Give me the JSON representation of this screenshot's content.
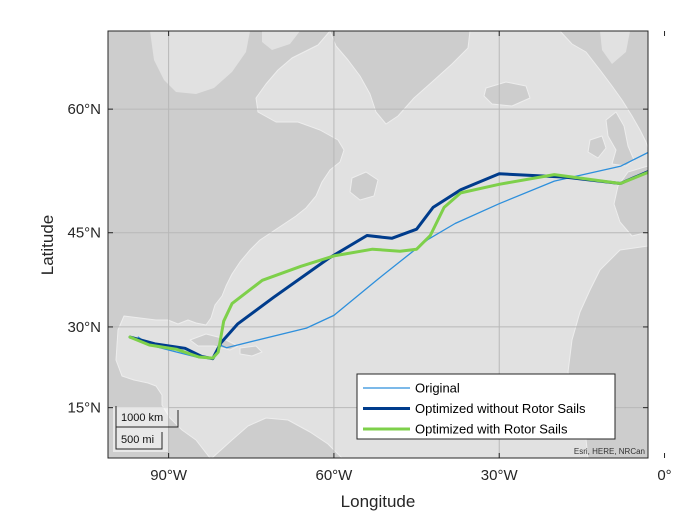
{
  "colors": {
    "ocean": "#e1e1e1",
    "land": "#cdcdcd",
    "land_edge": "#ededed",
    "grid": "#b8b8b8",
    "axis": "#262626"
  },
  "axes": {
    "xlabel": "Longitude",
    "ylabel": "Latitude",
    "xlim": [
      -101,
      -3
    ],
    "ylim": [
      5,
      67
    ],
    "xticks": [
      {
        "value": -90,
        "label": "90°W"
      },
      {
        "value": -60,
        "label": "60°W"
      },
      {
        "value": -30,
        "label": "30°W"
      },
      {
        "value": 0,
        "label": "0°"
      }
    ],
    "yticks": [
      {
        "value": 15,
        "label": "15°N"
      },
      {
        "value": 30,
        "label": "30°N"
      },
      {
        "value": 45,
        "label": "45°N"
      },
      {
        "value": 60,
        "label": "60°N"
      }
    ]
  },
  "chart_data": {
    "type": "line",
    "xlabel": "Longitude",
    "ylabel": "Latitude",
    "xlim": [
      -101,
      -3
    ],
    "ylim": [
      5,
      67
    ],
    "projection": "web-mercator",
    "basemap": "grayland",
    "grid": true,
    "legend_position": "bottom-right",
    "series": [
      {
        "name": "Original",
        "color": "#2d8fdc",
        "width": 1.3,
        "lon": [
          -95.5,
          -93.5,
          -88.5,
          -84.5,
          -81.8,
          -80.5,
          -79.5,
          -65,
          -60,
          -52,
          -43,
          -38,
          -30,
          -20,
          -8,
          -1.5
        ],
        "lat": [
          28.2,
          26.8,
          25.5,
          24.5,
          24.3,
          26.7,
          26.3,
          29.8,
          32,
          38,
          44,
          46.3,
          49,
          51.9,
          53.7,
          55.8
        ]
      },
      {
        "name": "Optimized without Rotor Sails",
        "color": "#003c8c",
        "width": 3,
        "lon": [
          -97,
          -92.5,
          -87,
          -84,
          -82,
          -80.5,
          -77.5,
          -71,
          -61,
          -54,
          -49.5,
          -45,
          -42,
          -37,
          -30,
          -18,
          -8,
          -1.5
        ],
        "lat": [
          28.2,
          27,
          26.2,
          24.7,
          24.3,
          27.2,
          30.5,
          35,
          41.2,
          44.6,
          44.2,
          45.5,
          48.5,
          50.8,
          52.8,
          52.4,
          51.6,
          53.5
        ]
      },
      {
        "name": "Optimized with Rotor Sails",
        "color": "#7ed04a",
        "width": 3,
        "lon": [
          -97,
          -93.5,
          -88.5,
          -84.5,
          -82,
          -81,
          -80,
          -78.5,
          -73,
          -66,
          -60,
          -53,
          -48,
          -45,
          -42.5,
          -40,
          -37,
          -30,
          -20,
          -8,
          -1,
          1
        ],
        "lat": [
          28.2,
          26.8,
          26,
          24.6,
          24.4,
          25.5,
          31,
          34,
          37.8,
          40,
          41.6,
          42.6,
          42.3,
          42.6,
          44.6,
          48.5,
          50.4,
          51.5,
          52.7,
          51.6,
          53.5,
          55.5
        ]
      }
    ]
  },
  "legend": {
    "items": [
      {
        "label": "Original",
        "color": "#2d8fdc",
        "width": 1.3
      },
      {
        "label": "Optimized without Rotor Sails",
        "color": "#003c8c",
        "width": 3
      },
      {
        "label": "Optimized with Rotor Sails",
        "color": "#7ed04a",
        "width": 3
      }
    ]
  },
  "scalebar": {
    "km_label": "1000 km",
    "mi_label": "500 mi"
  },
  "attribution": "Esri, HERE, NRCan"
}
